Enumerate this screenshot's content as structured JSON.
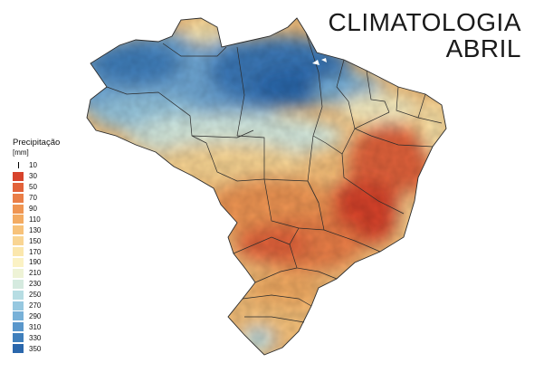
{
  "title": {
    "line1": "CLIMATOLOGIA",
    "line2": "ABRIL"
  },
  "legend": {
    "title": "Precipitação",
    "unit": "[mm]",
    "items": [
      {
        "label": "10",
        "color": "#ffffff"
      },
      {
        "label": "30",
        "color": "#d7432c"
      },
      {
        "label": "50",
        "color": "#e2623a"
      },
      {
        "label": "70",
        "color": "#ea7e47"
      },
      {
        "label": "90",
        "color": "#ef9552"
      },
      {
        "label": "110",
        "color": "#f3ab62"
      },
      {
        "label": "130",
        "color": "#f7c27a"
      },
      {
        "label": "150",
        "color": "#f9d593"
      },
      {
        "label": "170",
        "color": "#fbe7ad"
      },
      {
        "label": "190",
        "color": "#fbf2c4"
      },
      {
        "label": "210",
        "color": "#eef3d6"
      },
      {
        "label": "230",
        "color": "#d5eadf"
      },
      {
        "label": "250",
        "color": "#b7dde3"
      },
      {
        "label": "270",
        "color": "#97c8e0"
      },
      {
        "label": "290",
        "color": "#78b1d8"
      },
      {
        "label": "310",
        "color": "#5a97cb"
      },
      {
        "label": "330",
        "color": "#3f7fbc"
      },
      {
        "label": "350",
        "color": "#2a67ac"
      }
    ]
  }
}
